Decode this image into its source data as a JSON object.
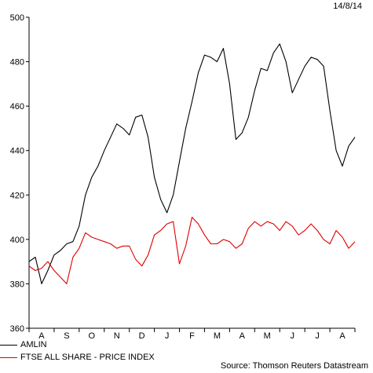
{
  "header": {
    "date": "14/8/14"
  },
  "source": "Source: Thomson Reuters Datastream",
  "chart_data": {
    "type": "line",
    "title": "",
    "xlabel": "",
    "ylabel": "",
    "ylim": [
      360,
      500
    ],
    "yticks": [
      360,
      380,
      400,
      420,
      440,
      460,
      480,
      500
    ],
    "grid": false,
    "legend_position": "bottom-left",
    "x_categories": [
      "A",
      "S",
      "O",
      "N",
      "D",
      "J",
      "F",
      "M",
      "A",
      "M",
      "J",
      "J",
      "A"
    ],
    "x_start": "2013-08-14",
    "x": [
      "2013-08-14",
      "2013-08-21",
      "2013-08-28",
      "2013-09-04",
      "2013-09-11",
      "2013-09-18",
      "2013-09-25",
      "2013-10-02",
      "2013-10-09",
      "2013-10-16",
      "2013-10-23",
      "2013-10-30",
      "2013-11-06",
      "2013-11-13",
      "2013-11-20",
      "2013-11-27",
      "2013-12-04",
      "2013-12-11",
      "2013-12-18",
      "2013-12-25",
      "2014-01-01",
      "2014-01-08",
      "2014-01-15",
      "2014-01-22",
      "2014-01-29",
      "2014-02-05",
      "2014-02-12",
      "2014-02-19",
      "2014-02-26",
      "2014-03-05",
      "2014-03-12",
      "2014-03-19",
      "2014-03-26",
      "2014-04-02",
      "2014-04-09",
      "2014-04-16",
      "2014-04-23",
      "2014-04-30",
      "2014-05-07",
      "2014-05-14",
      "2014-05-21",
      "2014-05-28",
      "2014-06-04",
      "2014-06-11",
      "2014-06-18",
      "2014-06-25",
      "2014-07-02",
      "2014-07-09",
      "2014-07-16",
      "2014-07-23",
      "2014-07-30",
      "2014-08-06",
      "2014-08-13"
    ],
    "series": [
      {
        "name": "AMLIN",
        "color": "#000000",
        "values": [
          390,
          392,
          380,
          386,
          393,
          395,
          398,
          399,
          406,
          420,
          428,
          433,
          440,
          446,
          452,
          450,
          447,
          455,
          456,
          446,
          428,
          418,
          412,
          420,
          435,
          450,
          462,
          475,
          483,
          482,
          480,
          486,
          470,
          445,
          448,
          455,
          467,
          477,
          476,
          484,
          488,
          480,
          466,
          472,
          478,
          482,
          481,
          478,
          458,
          440,
          433,
          442,
          446
        ]
      },
      {
        "name": "FTSE ALL SHARE - PRICE INDEX",
        "color": "#e00000",
        "values": [
          388,
          386,
          387,
          390,
          386,
          383,
          380,
          392,
          396,
          403,
          401,
          400,
          399,
          398,
          396,
          397,
          397,
          391,
          388,
          393,
          402,
          404,
          407,
          408,
          389,
          397,
          410,
          407,
          402,
          398,
          398,
          400,
          399,
          396,
          398,
          405,
          408,
          406,
          408,
          407,
          404,
          408,
          406,
          402,
          404,
          407,
          404,
          400,
          398,
          404,
          401,
          396,
          399
        ]
      }
    ]
  }
}
